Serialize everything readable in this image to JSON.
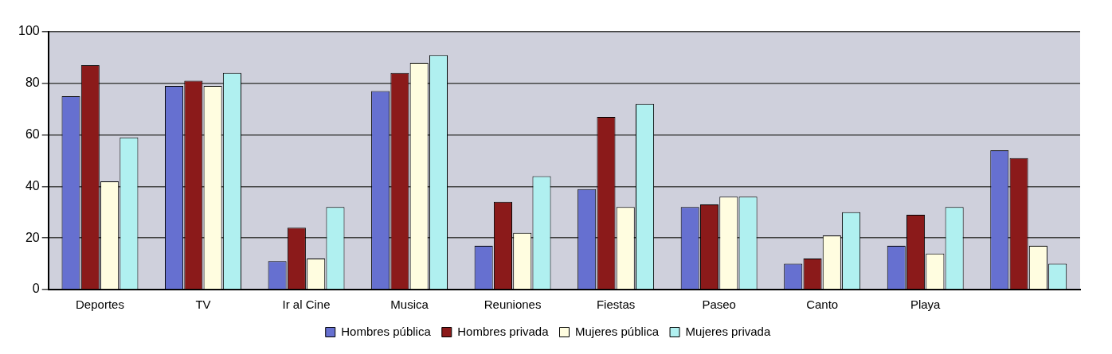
{
  "chart_data": {
    "type": "bar",
    "categories": [
      "Deportes",
      "TV",
      "Ir al Cine",
      "Musica",
      "Reuniones",
      "Fiestas",
      "Paseo",
      "Canto",
      "Playa",
      null
    ],
    "series": [
      {
        "name": "Hombres pública",
        "color": "#6670d0",
        "values": [
          75,
          79,
          11,
          77,
          17,
          39,
          32,
          10,
          17,
          54
        ]
      },
      {
        "name": "Hombres privada",
        "color": "#8b1a1a",
        "values": [
          87,
          81,
          24,
          84,
          34,
          67,
          33,
          12,
          29,
          51
        ]
      },
      {
        "name": "Mujeres pública",
        "color": "#fffde0",
        "values": [
          42,
          79,
          12,
          88,
          22,
          32,
          36,
          21,
          14,
          17
        ]
      },
      {
        "name": "Mujeres privada",
        "color": "#b0f0f0",
        "values": [
          59,
          84,
          32,
          91,
          44,
          72,
          36,
          30,
          32,
          10
        ]
      }
    ],
    "ylim": [
      0,
      100
    ],
    "yticks": [
      0,
      20,
      40,
      60,
      80,
      100
    ],
    "grid": "y",
    "legend": "bottom"
  }
}
